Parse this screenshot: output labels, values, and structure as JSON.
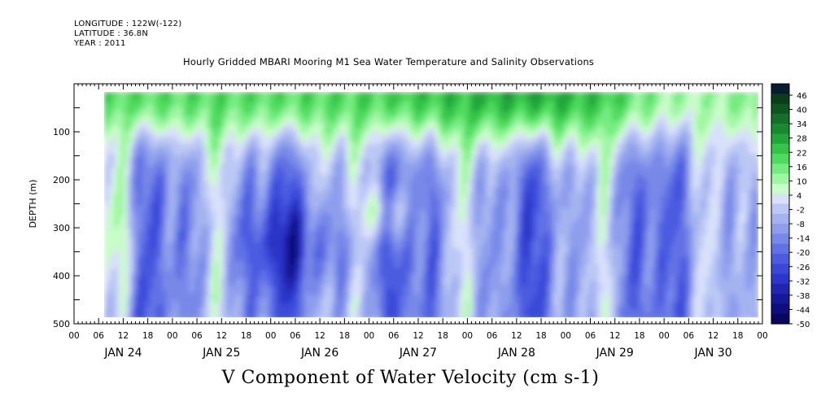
{
  "header": {
    "longitude": "LONGITUDE : 122W(-122)",
    "latitude": "LATITUDE : 36.8N",
    "year": "YEAR : 2011"
  },
  "chart_data": {
    "type": "heatmap",
    "title": "Hourly Gridded MBARI Mooring M1 Sea Water Temperature and Salinity Observations",
    "xlabel": "V Component of Water Velocity (cm s-1)",
    "ylabel": "DEPTH (m)",
    "y_ticks": [
      100,
      200,
      300,
      400,
      500
    ],
    "y_range": [
      0,
      500
    ],
    "y_inverted": true,
    "x_hour_ticks": [
      "00",
      "06",
      "12",
      "18",
      "00",
      "06",
      "12",
      "18",
      "00",
      "06",
      "12",
      "18",
      "00",
      "06",
      "12",
      "18",
      "00",
      "06",
      "12",
      "18",
      "00",
      "06",
      "12",
      "18",
      "00",
      "06",
      "12",
      "18",
      "00"
    ],
    "x_day_labels": [
      "JAN 24",
      "JAN 25",
      "JAN 26",
      "JAN 27",
      "JAN 28",
      "JAN 29",
      "JAN 30"
    ],
    "data_start_hour": 6,
    "data_end_hour": 168,
    "depth_range": [
      20,
      490
    ],
    "colorbar": {
      "labels": [
        "46",
        "40",
        "34",
        "28",
        "22",
        "16",
        "10",
        "4",
        "-2",
        "-8",
        "-14",
        "-20",
        "-26",
        "-32",
        "-38",
        "-44",
        "-50"
      ],
      "vmin": -50,
      "vmax": 50,
      "step": 3,
      "colors": [
        "#061e2e",
        "#0a3d18",
        "#0e5620",
        "#127028",
        "#188a30",
        "#22a63a",
        "#34c448",
        "#50da5e",
        "#74ec80",
        "#a0f6a4",
        "#c8fcc8",
        "#d8e0fa",
        "#bcc8f4",
        "#a4b2f0",
        "#8e9eec",
        "#7888e8",
        "#6272e4",
        "#4c5ce0",
        "#3a48d8",
        "#2c36c8",
        "#2026b0",
        "#161898",
        "#0e0e7c",
        "#080860"
      ],
      "ranges_note": "Approximate bands read from the image"
    },
    "pattern_notes": {
      "surface_0_100m": "predominantly green (positive V, 10 to 40 cm/s), strongest near Jan 28 12:00",
      "mid_depths": "alternating blue (negative V, -10 to -30 cm/s) and green vertical bands",
      "strongest_negative": "around Jan 25 18:00 - Jan 26 18:00 at 300-400 m"
    }
  }
}
